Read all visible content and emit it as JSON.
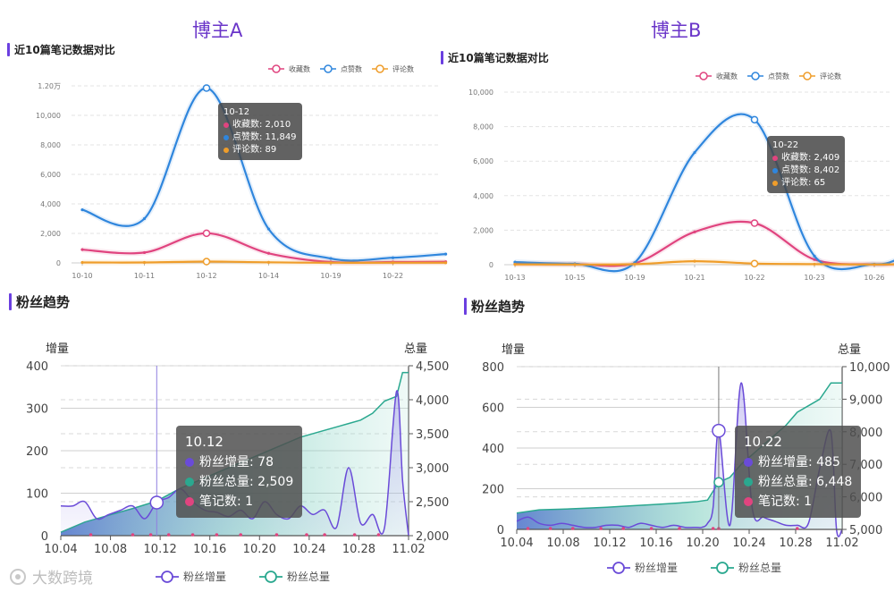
{
  "titles": {
    "blogger_a": "博主A",
    "blogger_b": "博主B"
  },
  "sections": {
    "notes_compare": "近10篇笔记数据对比",
    "fans_trend": "粉丝趋势"
  },
  "watermark": "大数跨境",
  "colors": {
    "collect": "#e0447f",
    "like": "#2f86dd",
    "comment": "#ef9d2a",
    "fan_inc": "#6a4bd8",
    "fan_total": "#2aa88f",
    "accent": "#6b3fe0"
  },
  "tooltips": {
    "a_notes": {
      "title": "10-12",
      "collect": "收藏数: 2,010",
      "like": "点赞数: 11,849",
      "comment": "评论数: 89"
    },
    "b_notes": {
      "title": "10-22",
      "collect": "收藏数: 2,409",
      "like": "点赞数: 8,402",
      "comment": "评论数: 65"
    },
    "a_fans": {
      "title": "10.12",
      "inc": "粉丝增量: 78",
      "total": "粉丝总量: 2,509",
      "notes": "笔记数: 1"
    },
    "b_fans": {
      "title": "10.22",
      "inc": "粉丝增量: 485",
      "total": "粉丝总量: 6,448",
      "notes": "笔记数: 1"
    }
  },
  "chart_data": [
    {
      "id": "a_notes",
      "type": "line",
      "title": "近10篇笔记数据对比",
      "legend": [
        "收藏数",
        "点赞数",
        "评论数"
      ],
      "categories": [
        "10-10",
        "10-11",
        "10-12",
        "10-14",
        "10-19",
        "10-22"
      ],
      "y_tick_labels": [
        "0",
        "2,000",
        "4,000",
        "6,000",
        "8,000",
        "10,000",
        "1.20万"
      ],
      "ylim": [
        0,
        12000
      ],
      "x": [
        0,
        1,
        2,
        3,
        4,
        5,
        5.85
      ],
      "series": [
        {
          "name": "收藏数",
          "values": [
            900,
            700,
            2010,
            650,
            60,
            60,
            80
          ]
        },
        {
          "name": "点赞数",
          "values": [
            3600,
            3000,
            11849,
            2300,
            300,
            350,
            600
          ]
        },
        {
          "name": "评论数",
          "values": [
            30,
            30,
            89,
            40,
            10,
            10,
            10
          ]
        }
      ],
      "highlight_index": 2
    },
    {
      "id": "b_notes",
      "type": "line",
      "title": "近10篇笔记数据对比",
      "legend": [
        "收藏数",
        "点赞数",
        "评论数"
      ],
      "categories": [
        "10-13",
        "10-15",
        "10-19",
        "10-21",
        "10-22",
        "10-23",
        "10-26"
      ],
      "y_tick_labels": [
        "0",
        "2,000",
        "4,000",
        "6,000",
        "8,000",
        "10,000"
      ],
      "ylim": [
        0,
        10000
      ],
      "x": [
        0,
        1,
        2,
        3,
        4,
        5,
        6,
        6.35
      ],
      "series": [
        {
          "name": "收藏数",
          "values": [
            50,
            30,
            80,
            1900,
            2409,
            300,
            20,
            30
          ]
        },
        {
          "name": "点赞数",
          "values": [
            150,
            50,
            120,
            6500,
            8402,
            500,
            30,
            250
          ]
        },
        {
          "name": "评论数",
          "values": [
            20,
            10,
            30,
            200,
            65,
            30,
            10,
            20
          ]
        }
      ],
      "highlight_index": 4
    },
    {
      "id": "a_fans",
      "type": "line+area",
      "title": "粉丝趋势",
      "y_label_left": "增量",
      "y_label_right": "总量",
      "y_left_ticks": [
        "0",
        "100",
        "200",
        "300",
        "400"
      ],
      "ylim_left": [
        0,
        400
      ],
      "y_right_ticks": [
        "2,000",
        "2,500",
        "3,000",
        "3,500",
        "4,000",
        "4,500"
      ],
      "ylim_right": [
        2000,
        4500
      ],
      "x_tick_labels": [
        "10.04",
        "10.08",
        "10.12",
        "10.16",
        "10.20",
        "10.24",
        "10.28",
        "11.02"
      ],
      "xlim": [
        0,
        29
      ],
      "legend": [
        "粉丝增量",
        "粉丝总量"
      ],
      "series": [
        {
          "name": "粉丝增量",
          "x": [
            0,
            1,
            2,
            3,
            4,
            5,
            6,
            7,
            8,
            9,
            10,
            11,
            12,
            13,
            14,
            15,
            16,
            17,
            18,
            19,
            20,
            21,
            22,
            23,
            24,
            25,
            26,
            27,
            28,
            28.5,
            29
          ],
          "values": [
            70,
            70,
            80,
            40,
            50,
            60,
            70,
            40,
            78,
            90,
            110,
            80,
            60,
            55,
            45,
            60,
            40,
            80,
            50,
            40,
            70,
            50,
            60,
            20,
            160,
            30,
            50,
            20,
            340,
            130,
            0
          ]
        },
        {
          "name": "粉丝总量",
          "x": [
            0,
            2,
            4,
            6,
            8,
            10,
            12,
            14,
            16,
            18,
            20,
            22,
            24,
            25,
            26,
            27,
            28,
            28.5,
            29
          ],
          "values": [
            2050,
            2200,
            2300,
            2400,
            2509,
            2700,
            2850,
            3000,
            3150,
            3300,
            3450,
            3550,
            3650,
            3700,
            3800,
            3980,
            4050,
            4400,
            4400
          ]
        }
      ],
      "note_markers_x": [
        2.5,
        6,
        7.5,
        9,
        11,
        13,
        15,
        18,
        20.5,
        22,
        24.5,
        26.5
      ],
      "highlight_x": 8
    },
    {
      "id": "b_fans",
      "type": "line+area",
      "title": "粉丝趋势",
      "y_label_left": "增量",
      "y_label_right": "总量",
      "y_left_ticks": [
        "0",
        "200",
        "400",
        "600",
        "800"
      ],
      "ylim_left": [
        0,
        800
      ],
      "y_right_ticks": [
        "5,000",
        "6,000",
        "7,000",
        "8,000",
        "9,000",
        "10,000"
      ],
      "ylim_right": [
        5000,
        10000
      ],
      "x_tick_labels": [
        "10.04",
        "10.08",
        "10.12",
        "10.16",
        "10.20",
        "10.24",
        "10.28",
        "11.02"
      ],
      "xlim": [
        0,
        29
      ],
      "legend": [
        "粉丝增量",
        "粉丝总量"
      ],
      "series": [
        {
          "name": "粉丝增量",
          "x": [
            0,
            1,
            2,
            3,
            4,
            5,
            6,
            7,
            8,
            9,
            10,
            11,
            12,
            13,
            14,
            15,
            16,
            16.5,
            17,
            17.5,
            18,
            19,
            20,
            21,
            22,
            23,
            24,
            25,
            26,
            27,
            28,
            28.5,
            29
          ],
          "values": [
            40,
            60,
            30,
            20,
            30,
            20,
            10,
            10,
            20,
            20,
            10,
            30,
            20,
            10,
            20,
            10,
            10,
            10,
            30,
            110,
            485,
            20,
            720,
            100,
            60,
            40,
            20,
            20,
            30,
            300,
            480,
            0,
            0
          ]
        },
        {
          "name": "粉丝总量",
          "x": [
            0,
            2,
            4,
            6,
            8,
            10,
            12,
            14,
            16,
            17,
            18,
            19,
            20,
            21,
            22,
            23,
            24,
            25,
            26,
            27,
            28,
            29
          ],
          "values": [
            5500,
            5600,
            5620,
            5650,
            5680,
            5720,
            5760,
            5800,
            5850,
            5900,
            6448,
            6600,
            7000,
            7300,
            7600,
            7900,
            8200,
            8600,
            8800,
            9000,
            9500,
            9500
          ]
        }
      ],
      "note_markers_x": [
        1,
        3,
        5,
        7.5,
        9.5,
        12,
        14.5,
        17.5,
        18,
        25
      ],
      "highlight_x": 18
    }
  ]
}
